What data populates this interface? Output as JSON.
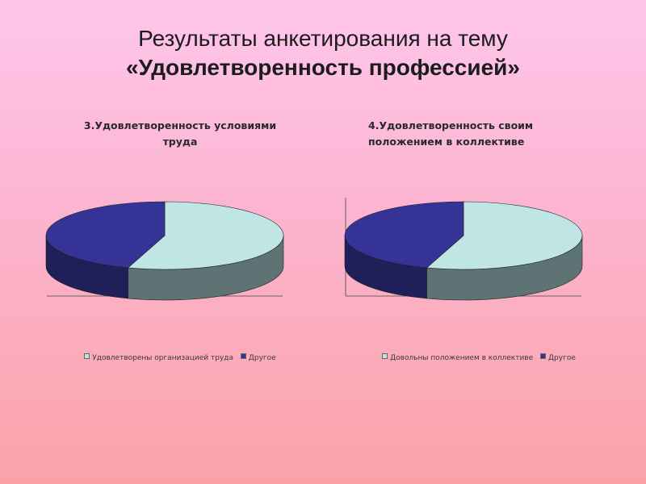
{
  "title": {
    "line1": "Результаты анкетирования на тему",
    "line2": "«Удовлетворенность профессией»"
  },
  "colors": {
    "light": "#bfe5e5",
    "light_side": "#5e7373",
    "dark": "#353396",
    "dark_side": "#1f1f5a"
  },
  "chart_data": [
    {
      "type": "pie",
      "title_lines": [
        "3.Удовлетворенность условиями",
        "труда"
      ],
      "categories": [
        "Удовлетворены организацией труда",
        "Другое"
      ],
      "values": [
        55,
        45
      ],
      "colors": [
        "#bfe5e5",
        "#353396"
      ],
      "legend_position": "bottom"
    },
    {
      "type": "pie",
      "title_lines": [
        "4.Удовлетворенность своим",
        "положением в коллективе"
      ],
      "categories": [
        "Довольны положением в коллективе",
        "Другое"
      ],
      "values": [
        55,
        45
      ],
      "colors": [
        "#bfe5e5",
        "#353396"
      ],
      "legend_position": "bottom"
    }
  ]
}
